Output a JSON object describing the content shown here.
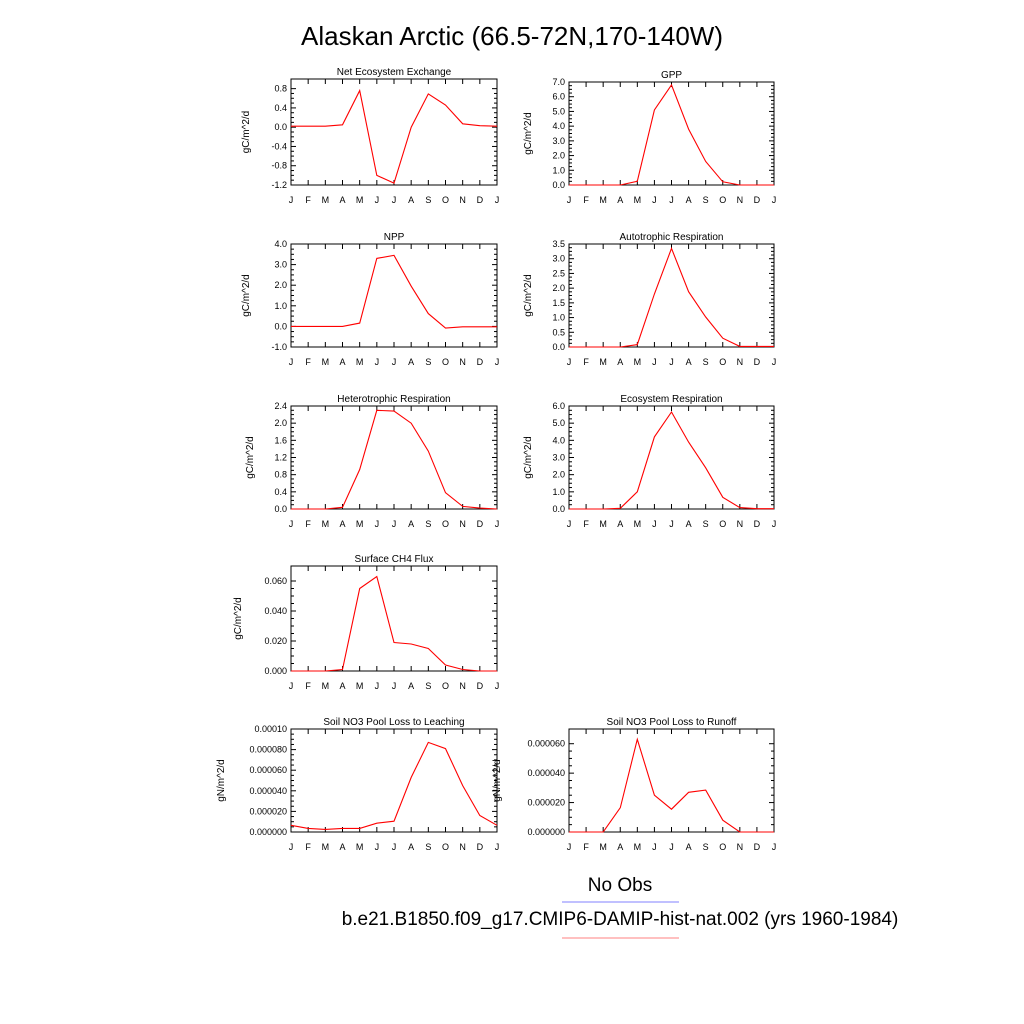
{
  "figure": {
    "title": "Alaskan Arctic (66.5-72N,170-140W)",
    "months": [
      "J",
      "F",
      "M",
      "A",
      "M",
      "J",
      "J",
      "A",
      "S",
      "O",
      "N",
      "D",
      "J"
    ],
    "line_color": "#ff0000",
    "legend": [
      {
        "label": "No Obs",
        "color": "#8080ff"
      },
      {
        "label": "b.e21.B1850.f09_g17.CMIP6-DAMIP-hist-nat.002 (yrs 1960-1984)",
        "color": "#ff8080"
      }
    ]
  },
  "chart_data": [
    {
      "type": "line",
      "title": "Net Ecosystem Exchange",
      "ylabel": "gC/m^2/d",
      "ylim": [
        -1.2,
        1.0
      ],
      "yticks": [
        "0.8",
        "0.4",
        "0.0",
        "-0.4",
        "-0.8",
        "-1.2"
      ],
      "ytick_values": [
        0.8,
        0.4,
        0.0,
        -0.4,
        -0.8,
        -1.2
      ],
      "x": [
        0,
        1,
        2,
        3,
        4,
        5,
        6,
        7,
        8,
        9,
        10,
        11,
        12
      ],
      "values": [
        0.02,
        0.02,
        0.02,
        0.05,
        0.76,
        -1.0,
        -1.16,
        0.0,
        0.69,
        0.46,
        0.07,
        0.03,
        0.02
      ]
    },
    {
      "type": "line",
      "title": "GPP",
      "ylabel": "gC/m^2/d",
      "ylim": [
        0.0,
        7.0
      ],
      "yticks": [
        "7.0",
        "6.0",
        "5.0",
        "4.0",
        "3.0",
        "2.0",
        "1.0",
        "0.0"
      ],
      "ytick_values": [
        7.0,
        6.0,
        5.0,
        4.0,
        3.0,
        2.0,
        1.0,
        0.0
      ],
      "x": [
        0,
        1,
        2,
        3,
        4,
        5,
        6,
        7,
        8,
        9,
        10,
        11,
        12
      ],
      "values": [
        0.0,
        0.0,
        0.0,
        0.0,
        0.25,
        5.1,
        6.8,
        3.8,
        1.6,
        0.22,
        0.0,
        0.0,
        0.0
      ]
    },
    {
      "type": "line",
      "title": "NPP",
      "ylabel": "gC/m^2/d",
      "ylim": [
        -1.0,
        4.0
      ],
      "yticks": [
        "4.0",
        "3.0",
        "2.0",
        "1.0",
        "0.0",
        "-1.0"
      ],
      "ytick_values": [
        4.0,
        3.0,
        2.0,
        1.0,
        0.0,
        -1.0
      ],
      "x": [
        0,
        1,
        2,
        3,
        4,
        5,
        6,
        7,
        8,
        9,
        10,
        11,
        12
      ],
      "values": [
        0.0,
        0.0,
        0.0,
        0.0,
        0.16,
        3.3,
        3.45,
        1.95,
        0.62,
        -0.08,
        -0.02,
        -0.02,
        -0.02
      ]
    },
    {
      "type": "line",
      "title": "Autotrophic Respiration",
      "ylabel": "gC/m^2/d",
      "ylim": [
        0.0,
        3.5
      ],
      "yticks": [
        "3.5",
        "3.0",
        "2.5",
        "2.0",
        "1.5",
        "1.0",
        "0.5",
        "0.0"
      ],
      "ytick_values": [
        3.5,
        3.0,
        2.5,
        2.0,
        1.5,
        1.0,
        0.5,
        0.0
      ],
      "x": [
        0,
        1,
        2,
        3,
        4,
        5,
        6,
        7,
        8,
        9,
        10,
        11,
        12
      ],
      "values": [
        0.0,
        0.0,
        0.0,
        0.0,
        0.08,
        1.8,
        3.35,
        1.88,
        1.02,
        0.3,
        0.02,
        0.02,
        0.02
      ]
    },
    {
      "type": "line",
      "title": "Heterotrophic Respiration",
      "ylabel": "gC/m^2/d",
      "ylim": [
        0.0,
        2.4
      ],
      "yticks": [
        "2.4",
        "2.0",
        "1.6",
        "1.2",
        "0.8",
        "0.4",
        "0.0"
      ],
      "ytick_values": [
        2.4,
        2.0,
        1.6,
        1.2,
        0.8,
        0.4,
        0.0
      ],
      "x": [
        0,
        1,
        2,
        3,
        4,
        5,
        6,
        7,
        8,
        9,
        10,
        11,
        12
      ],
      "values": [
        0.0,
        0.0,
        0.0,
        0.04,
        0.92,
        2.3,
        2.28,
        2.0,
        1.35,
        0.38,
        0.06,
        0.02,
        0.0
      ]
    },
    {
      "type": "line",
      "title": "Ecosystem Respiration",
      "ylabel": "gC/m^2/d",
      "ylim": [
        0.0,
        6.0
      ],
      "yticks": [
        "6.0",
        "5.0",
        "4.0",
        "3.0",
        "2.0",
        "1.0",
        "0.0"
      ],
      "ytick_values": [
        6.0,
        5.0,
        4.0,
        3.0,
        2.0,
        1.0,
        0.0
      ],
      "x": [
        0,
        1,
        2,
        3,
        4,
        5,
        6,
        7,
        8,
        9,
        10,
        11,
        12
      ],
      "values": [
        0.0,
        0.0,
        0.0,
        0.04,
        1.0,
        4.2,
        5.65,
        3.9,
        2.4,
        0.68,
        0.08,
        0.02,
        0.02
      ]
    },
    {
      "type": "line",
      "title": "Surface CH4 Flux",
      "ylabel": "gC/m^2/d",
      "ylim": [
        0.0,
        0.07
      ],
      "yticks": [
        "0.060",
        "0.040",
        "0.020",
        "0.000"
      ],
      "ytick_values": [
        0.06,
        0.04,
        0.02,
        0.0
      ],
      "x": [
        0,
        1,
        2,
        3,
        4,
        5,
        6,
        7,
        8,
        9,
        10,
        11,
        12
      ],
      "values": [
        0.0,
        0.0,
        0.0,
        0.001,
        0.055,
        0.063,
        0.019,
        0.018,
        0.015,
        0.004,
        0.001,
        0.0,
        0.0
      ]
    },
    {
      "type": "line",
      "title": "Soil NO3 Pool Loss to Leaching",
      "ylabel": "gN/m^2/d",
      "ylim": [
        0.0,
        0.0001
      ],
      "yticks": [
        "0.00010",
        "0.000080",
        "0.000060",
        "0.000040",
        "0.000020",
        "0.000000"
      ],
      "ytick_values": [
        0.0001,
        8e-05,
        6e-05,
        4e-05,
        2e-05,
        0.0
      ],
      "x": [
        0,
        1,
        2,
        3,
        4,
        5,
        6,
        7,
        8,
        9,
        10,
        11,
        12
      ],
      "values": [
        6.5e-06,
        3.5e-06,
        2.5e-06,
        3.5e-06,
        3.5e-06,
        8.5e-06,
        1.05e-05,
        5.3e-05,
        8.7e-05,
        8.1e-05,
        4.5e-05,
        1.6e-05,
        6.5e-06
      ]
    },
    {
      "type": "line",
      "title": "Soil NO3 Pool Loss to Runoff",
      "ylabel": "gN/m^2/d",
      "ylim": [
        0.0,
        7e-05
      ],
      "yticks": [
        "0.000060",
        "0.000040",
        "0.000020",
        "0.000000"
      ],
      "ytick_values": [
        6e-05,
        4e-05,
        2e-05,
        0.0
      ],
      "x": [
        0,
        1,
        2,
        3,
        4,
        5,
        6,
        7,
        8,
        9,
        10,
        11,
        12
      ],
      "values": [
        0.0,
        0.0,
        0.0,
        1.65e-05,
        6.3e-05,
        2.5e-05,
        1.55e-05,
        2.7e-05,
        2.85e-05,
        8e-06,
        0.0,
        0.0,
        0.0
      ]
    }
  ]
}
